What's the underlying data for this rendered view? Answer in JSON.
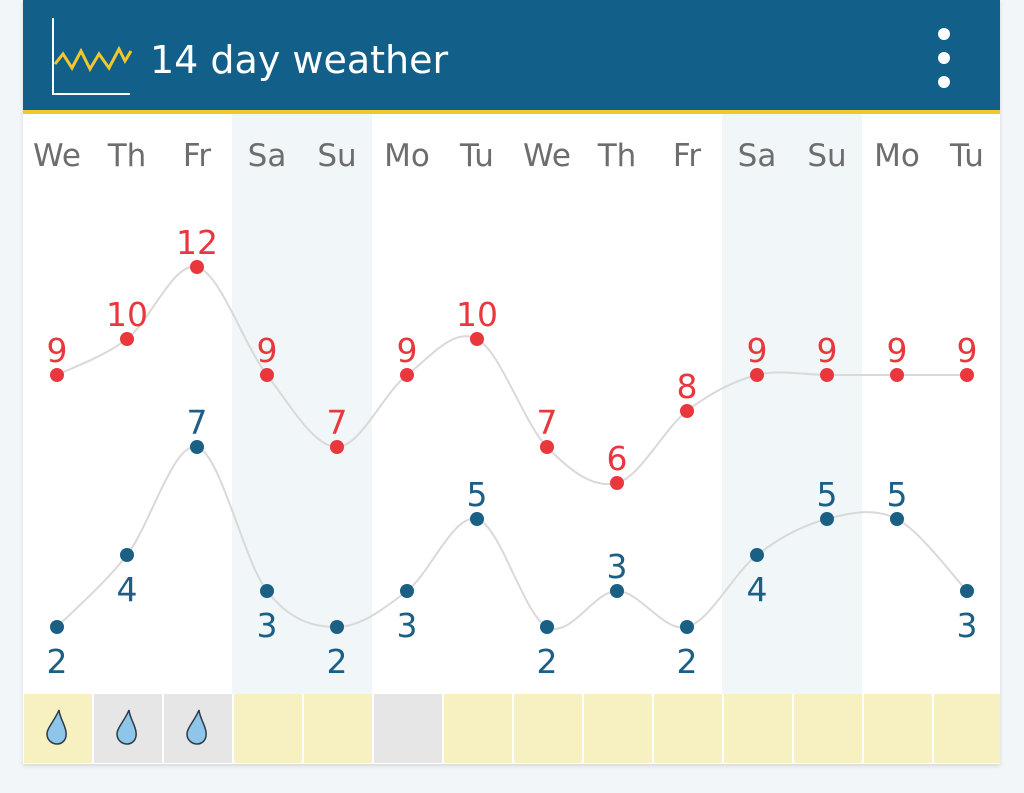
{
  "header": {
    "title": "14 day weather",
    "icon": "chart-icon",
    "menu_icon": "more-vertical-icon"
  },
  "colors": {
    "header_bg": "#125f8a",
    "header_border": "#f0c72c",
    "high_color": "#e8383d",
    "low_color": "#1b5f85",
    "weekend_bg": "#f1f6f9",
    "rain_yes_bg": "#f7f0c0",
    "rain_cell_grey": "#e6e6e6",
    "drop_color": "#8ec6ea"
  },
  "days": [
    {
      "label": "We",
      "weekend": false,
      "rain": true,
      "cell": "yellow"
    },
    {
      "label": "Th",
      "weekend": false,
      "rain": true,
      "cell": "grey"
    },
    {
      "label": "Fr",
      "weekend": false,
      "rain": true,
      "cell": "grey"
    },
    {
      "label": "Sa",
      "weekend": true,
      "rain": false,
      "cell": "yellow"
    },
    {
      "label": "Su",
      "weekend": true,
      "rain": false,
      "cell": "yellow"
    },
    {
      "label": "Mo",
      "weekend": false,
      "rain": false,
      "cell": "grey"
    },
    {
      "label": "Tu",
      "weekend": false,
      "rain": false,
      "cell": "yellow"
    },
    {
      "label": "We",
      "weekend": false,
      "rain": false,
      "cell": "yellow"
    },
    {
      "label": "Th",
      "weekend": false,
      "rain": false,
      "cell": "yellow"
    },
    {
      "label": "Fr",
      "weekend": false,
      "rain": false,
      "cell": "yellow"
    },
    {
      "label": "Sa",
      "weekend": true,
      "rain": false,
      "cell": "yellow"
    },
    {
      "label": "Su",
      "weekend": true,
      "rain": false,
      "cell": "yellow"
    },
    {
      "label": "Mo",
      "weekend": false,
      "rain": false,
      "cell": "yellow"
    },
    {
      "label": "Tu",
      "weekend": false,
      "rain": false,
      "cell": "yellow"
    }
  ],
  "chart_data": {
    "type": "line",
    "categories": [
      "We",
      "Th",
      "Fr",
      "Sa",
      "Su",
      "Mo",
      "Tu",
      "We",
      "Th",
      "Fr",
      "Sa",
      "Su",
      "Mo",
      "Tu"
    ],
    "series": [
      {
        "values": [
          9,
          10,
          12,
          9,
          7,
          9,
          10,
          7,
          6,
          8,
          9,
          9,
          9,
          9
        ]
      },
      {
        "values": [
          2,
          4,
          7,
          3,
          2,
          3,
          5,
          2,
          3,
          2,
          4,
          5,
          5,
          3
        ]
      }
    ],
    "title": "",
    "xlabel": "",
    "ylabel": "",
    "ylim": [
      -1,
      15
    ],
    "grid": false,
    "legend": "none"
  }
}
